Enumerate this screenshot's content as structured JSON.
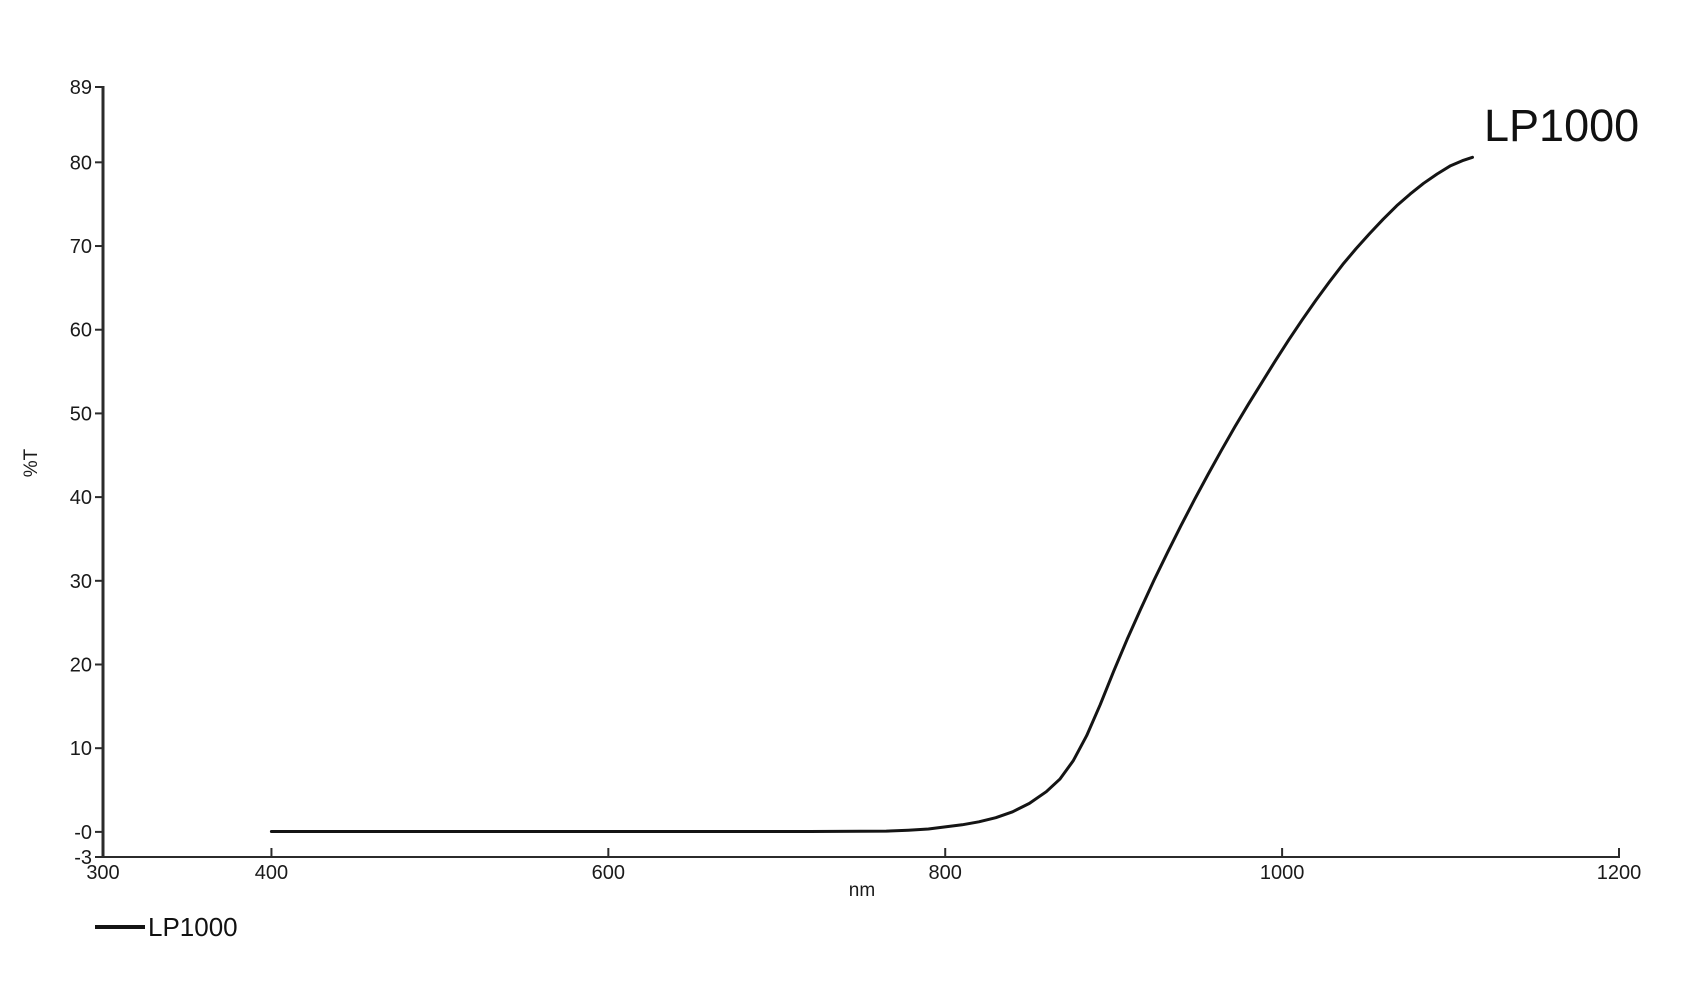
{
  "chart_data": {
    "type": "line",
    "title": "",
    "xlabel": "nm",
    "ylabel": "%T",
    "xlim": [
      300,
      1200
    ],
    "ylim": [
      -3,
      89
    ],
    "grid": false,
    "axis_color": "#2b2b2b",
    "text_color": "#1a1a1a",
    "x_ticks": [
      {
        "value": 300,
        "label": "300"
      },
      {
        "value": 400,
        "label": "400"
      },
      {
        "value": 600,
        "label": "600"
      },
      {
        "value": 800,
        "label": "800"
      },
      {
        "value": 1000,
        "label": "1000"
      },
      {
        "value": 1200,
        "label": "1200"
      }
    ],
    "y_ticks": [
      {
        "value": -3,
        "label": "-3"
      },
      {
        "value": 0,
        "label": "-0"
      },
      {
        "value": 10,
        "label": "10"
      },
      {
        "value": 20,
        "label": "20"
      },
      {
        "value": 30,
        "label": "30"
      },
      {
        "value": 40,
        "label": "40"
      },
      {
        "value": 50,
        "label": "50"
      },
      {
        "value": 60,
        "label": "60"
      },
      {
        "value": 70,
        "label": "70"
      },
      {
        "value": 80,
        "label": "80"
      },
      {
        "value": 89,
        "label": "89"
      }
    ],
    "annotation": {
      "text": "LP1000"
    },
    "legend": {
      "position": "bottom-left",
      "label": "LP1000"
    },
    "series": [
      {
        "name": "LP1000",
        "color": "#141414",
        "points": [
          [
            400,
            0.05
          ],
          [
            440,
            0.05
          ],
          [
            480,
            0.05
          ],
          [
            520,
            0.05
          ],
          [
            560,
            0.05
          ],
          [
            600,
            0.05
          ],
          [
            640,
            0.05
          ],
          [
            680,
            0.05
          ],
          [
            720,
            0.05
          ],
          [
            750,
            0.08
          ],
          [
            765,
            0.1
          ],
          [
            778,
            0.2
          ],
          [
            790,
            0.35
          ],
          [
            800,
            0.6
          ],
          [
            810,
            0.85
          ],
          [
            820,
            1.2
          ],
          [
            830,
            1.7
          ],
          [
            840,
            2.4
          ],
          [
            850,
            3.4
          ],
          [
            860,
            4.8
          ],
          [
            868,
            6.3
          ],
          [
            876,
            8.5
          ],
          [
            884,
            11.5
          ],
          [
            892,
            15.2
          ],
          [
            900,
            19.2
          ],
          [
            908,
            23.0
          ],
          [
            916,
            26.6
          ],
          [
            924,
            30.1
          ],
          [
            932,
            33.4
          ],
          [
            940,
            36.6
          ],
          [
            948,
            39.7
          ],
          [
            956,
            42.7
          ],
          [
            964,
            45.6
          ],
          [
            972,
            48.4
          ],
          [
            980,
            51.1
          ],
          [
            988,
            53.7
          ],
          [
            996,
            56.3
          ],
          [
            1004,
            58.8
          ],
          [
            1012,
            61.2
          ],
          [
            1020,
            63.5
          ],
          [
            1028,
            65.7
          ],
          [
            1036,
            67.8
          ],
          [
            1044,
            69.7
          ],
          [
            1052,
            71.5
          ],
          [
            1060,
            73.2
          ],
          [
            1068,
            74.8
          ],
          [
            1076,
            76.2
          ],
          [
            1084,
            77.5
          ],
          [
            1092,
            78.6
          ],
          [
            1100,
            79.6
          ],
          [
            1107,
            80.2
          ],
          [
            1113,
            80.6
          ]
        ]
      }
    ]
  }
}
